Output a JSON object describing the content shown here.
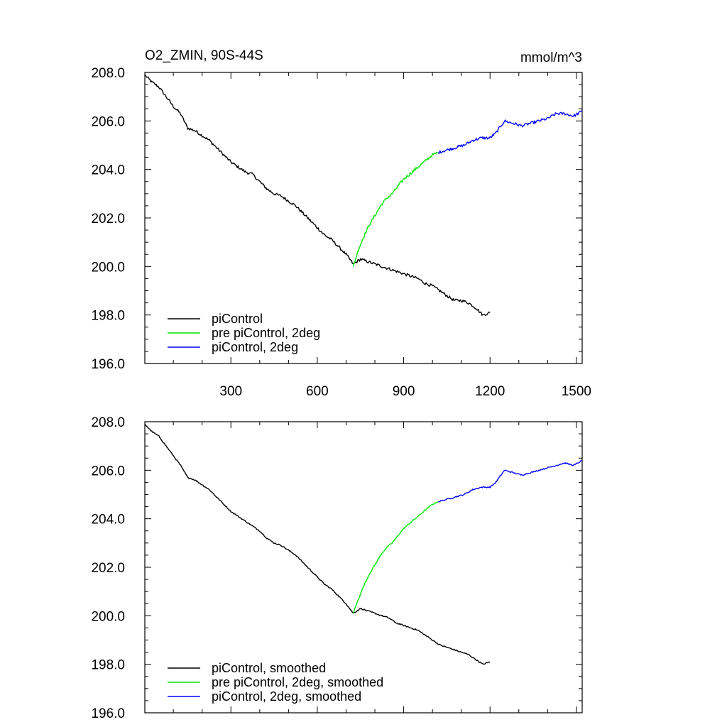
{
  "figure": {
    "title_left": "O2_ZMIN, 90S-44S",
    "title_right": "mmol/m^3"
  },
  "colors": {
    "piControl": "#000000",
    "pre_piControl_2deg": "#00e600",
    "piControl_2deg": "#0000ff"
  },
  "chart_data": [
    {
      "type": "line",
      "panel": "top",
      "title": "O2_ZMIN, 90S-44S",
      "units": "mmol/m^3",
      "xlim": [
        1,
        1520
      ],
      "ylim": [
        196,
        208
      ],
      "x_ticks": [
        300,
        600,
        900,
        1200,
        1500
      ],
      "x_tick_labels": [
        "300",
        "600",
        "900",
        "1200",
        "1500"
      ],
      "y_ticks": [
        196,
        198,
        200,
        202,
        204,
        206,
        208
      ],
      "y_tick_labels": [
        "196.0",
        "198.0",
        "200.0",
        "202.0",
        "204.0",
        "206.0",
        "208.0"
      ],
      "legend_position": "bottom-left",
      "smoothed": false,
      "series": [
        {
          "name": "piControl",
          "color_key": "piControl",
          "x": [
            1,
            25,
            50,
            75,
            100,
            125,
            150,
            175,
            200,
            225,
            250,
            275,
            300,
            325,
            350,
            375,
            400,
            425,
            450,
            475,
            500,
            525,
            550,
            575,
            600,
            625,
            650,
            675,
            700,
            725,
            750,
            775,
            800,
            825,
            850,
            875,
            900,
            925,
            950,
            975,
            1000,
            1025,
            1050,
            1075,
            1100,
            1125,
            1150,
            1175,
            1200
          ],
          "y": [
            207.9,
            207.6,
            207.4,
            207.0,
            206.6,
            206.3,
            205.7,
            205.6,
            205.4,
            205.2,
            204.9,
            204.6,
            204.3,
            204.1,
            203.9,
            203.8,
            203.5,
            203.2,
            203.0,
            202.9,
            202.7,
            202.5,
            202.2,
            201.9,
            201.6,
            201.3,
            201.1,
            200.8,
            200.5,
            200.1,
            200.3,
            200.2,
            200.1,
            200.0,
            199.9,
            199.8,
            199.7,
            199.6,
            199.5,
            199.3,
            199.2,
            199.0,
            198.8,
            198.6,
            198.6,
            198.5,
            198.3,
            198.0,
            198.1
          ]
        },
        {
          "name": "pre piControl, 2deg",
          "color_key": "pre_piControl_2deg",
          "x": [
            725,
            740,
            760,
            780,
            800,
            820,
            840,
            860,
            880,
            900,
            920,
            940,
            960,
            980,
            1000,
            1020
          ],
          "y": [
            200.0,
            200.6,
            201.2,
            201.7,
            202.1,
            202.5,
            202.8,
            203.0,
            203.3,
            203.6,
            203.8,
            204.0,
            204.2,
            204.4,
            204.6,
            204.7
          ]
        },
        {
          "name": "piControl, 2deg",
          "color_key": "piControl_2deg",
          "x": [
            1020,
            1050,
            1080,
            1110,
            1140,
            1170,
            1200,
            1220,
            1250,
            1280,
            1310,
            1340,
            1370,
            1400,
            1430,
            1460,
            1490,
            1520
          ],
          "y": [
            204.7,
            204.8,
            204.9,
            205.0,
            205.2,
            205.3,
            205.3,
            205.5,
            206.0,
            205.9,
            205.8,
            205.9,
            206.0,
            206.1,
            206.3,
            206.3,
            206.2,
            206.4
          ]
        }
      ]
    },
    {
      "type": "line",
      "panel": "bottom",
      "xlim": [
        1,
        1520
      ],
      "ylim": [
        196,
        208
      ],
      "x_ticks": [
        300,
        600,
        900,
        1200,
        1500
      ],
      "y_ticks": [
        196,
        198,
        200,
        202,
        204,
        206,
        208
      ],
      "y_tick_labels": [
        "196.0",
        "198.0",
        "200.0",
        "202.0",
        "204.0",
        "206.0",
        "208.0"
      ],
      "legend_position": "bottom-left",
      "smoothed": true,
      "series": [
        {
          "name": "piControl, smoothed",
          "color_key": "piControl",
          "x": [
            1,
            25,
            50,
            75,
            100,
            125,
            150,
            175,
            200,
            225,
            250,
            275,
            300,
            325,
            350,
            375,
            400,
            425,
            450,
            475,
            500,
            525,
            550,
            575,
            600,
            625,
            650,
            675,
            700,
            725,
            750,
            775,
            800,
            825,
            850,
            875,
            900,
            925,
            950,
            975,
            1000,
            1025,
            1050,
            1075,
            1100,
            1125,
            1150,
            1175,
            1200
          ],
          "y": [
            207.9,
            207.6,
            207.4,
            207.0,
            206.6,
            206.2,
            205.7,
            205.6,
            205.4,
            205.2,
            204.9,
            204.6,
            204.3,
            204.1,
            203.9,
            203.7,
            203.5,
            203.2,
            203.0,
            202.9,
            202.7,
            202.5,
            202.2,
            201.9,
            201.6,
            201.3,
            201.1,
            200.8,
            200.5,
            200.1,
            200.3,
            200.2,
            200.1,
            200.0,
            199.9,
            199.7,
            199.6,
            199.5,
            199.4,
            199.2,
            199.0,
            198.8,
            198.7,
            198.6,
            198.5,
            198.4,
            198.2,
            198.0,
            198.1
          ]
        },
        {
          "name": "pre piControl, 2deg, smoothed",
          "color_key": "pre_piControl_2deg",
          "x": [
            725,
            740,
            760,
            780,
            800,
            820,
            840,
            860,
            880,
            900,
            920,
            940,
            960,
            980,
            1000,
            1020
          ],
          "y": [
            200.1,
            200.6,
            201.2,
            201.7,
            202.1,
            202.5,
            202.8,
            203.0,
            203.3,
            203.6,
            203.8,
            204.0,
            204.2,
            204.4,
            204.6,
            204.7
          ]
        },
        {
          "name": "piControl, 2deg, smoothed",
          "color_key": "piControl_2deg",
          "x": [
            1020,
            1050,
            1080,
            1110,
            1140,
            1170,
            1200,
            1220,
            1250,
            1280,
            1310,
            1340,
            1370,
            1400,
            1430,
            1460,
            1490,
            1520
          ],
          "y": [
            204.7,
            204.8,
            204.9,
            205.0,
            205.2,
            205.3,
            205.3,
            205.5,
            206.0,
            205.9,
            205.8,
            205.9,
            206.0,
            206.1,
            206.2,
            206.3,
            206.2,
            206.4
          ]
        }
      ]
    }
  ]
}
